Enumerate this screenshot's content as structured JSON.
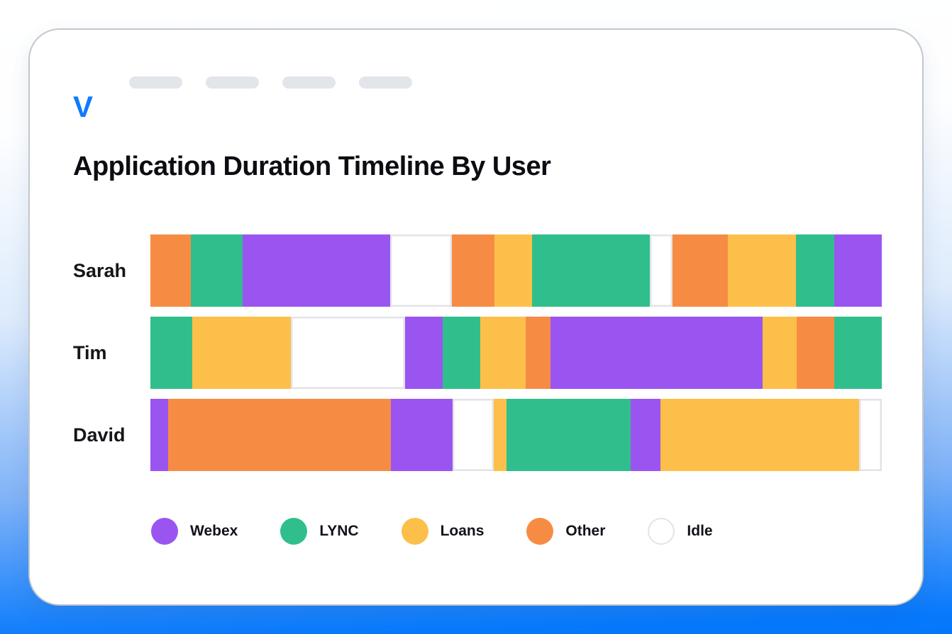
{
  "header": {
    "logo": "V",
    "nav_placeholders": 4
  },
  "title": "Application Duration Timeline By User",
  "colors": {
    "webex": "#9a55f1",
    "lync": "#30bf8c",
    "loans": "#fcc04a",
    "other": "#f68c44",
    "idle": "#ffffff",
    "idle_border": "#e3e3e8",
    "accent_blue": "#0679fc",
    "nav_pill": "#e2e5ea"
  },
  "chart_data": {
    "type": "timeline",
    "unit": "percent_of_row_width",
    "rows": [
      {
        "user": "Sarah",
        "segments": [
          {
            "app": "other",
            "pct": 5.5
          },
          {
            "app": "lync",
            "pct": 7.1
          },
          {
            "app": "webex",
            "pct": 20.2
          },
          {
            "app": "idle",
            "pct": 8.4
          },
          {
            "app": "other",
            "pct": 5.8
          },
          {
            "app": "loans",
            "pct": 5.2
          },
          {
            "app": "lync",
            "pct": 16.1
          },
          {
            "app": "idle",
            "pct": 3.1
          },
          {
            "app": "other",
            "pct": 7.6
          },
          {
            "app": "loans",
            "pct": 9.3
          },
          {
            "app": "lync",
            "pct": 5.2
          },
          {
            "app": "webex",
            "pct": 6.5
          }
        ]
      },
      {
        "user": "Tim",
        "segments": [
          {
            "app": "lync",
            "pct": 5.7
          },
          {
            "app": "loans",
            "pct": 13.5
          },
          {
            "app": "idle",
            "pct": 15.6
          },
          {
            "app": "webex",
            "pct": 5.2
          },
          {
            "app": "lync",
            "pct": 5.1
          },
          {
            "app": "loans",
            "pct": 6.2
          },
          {
            "app": "other",
            "pct": 3.4
          },
          {
            "app": "webex",
            "pct": 29.0
          },
          {
            "app": "loans",
            "pct": 4.7
          },
          {
            "app": "other",
            "pct": 5.1
          },
          {
            "app": "lync",
            "pct": 6.5
          }
        ]
      },
      {
        "user": "David",
        "segments": [
          {
            "app": "webex",
            "pct": 2.4
          },
          {
            "app": "other",
            "pct": 30.5
          },
          {
            "app": "webex",
            "pct": 8.4
          },
          {
            "app": "idle",
            "pct": 5.6
          },
          {
            "app": "loans",
            "pct": 1.8
          },
          {
            "app": "lync",
            "pct": 17.0
          },
          {
            "app": "webex",
            "pct": 4.0
          },
          {
            "app": "loans",
            "pct": 27.2
          },
          {
            "app": "idle",
            "pct": 3.1
          }
        ]
      }
    ]
  },
  "legend": [
    {
      "key": "webex",
      "label": "Webex"
    },
    {
      "key": "lync",
      "label": "LYNC"
    },
    {
      "key": "loans",
      "label": "Loans"
    },
    {
      "key": "other",
      "label": "Other"
    },
    {
      "key": "idle",
      "label": "Idle"
    }
  ]
}
